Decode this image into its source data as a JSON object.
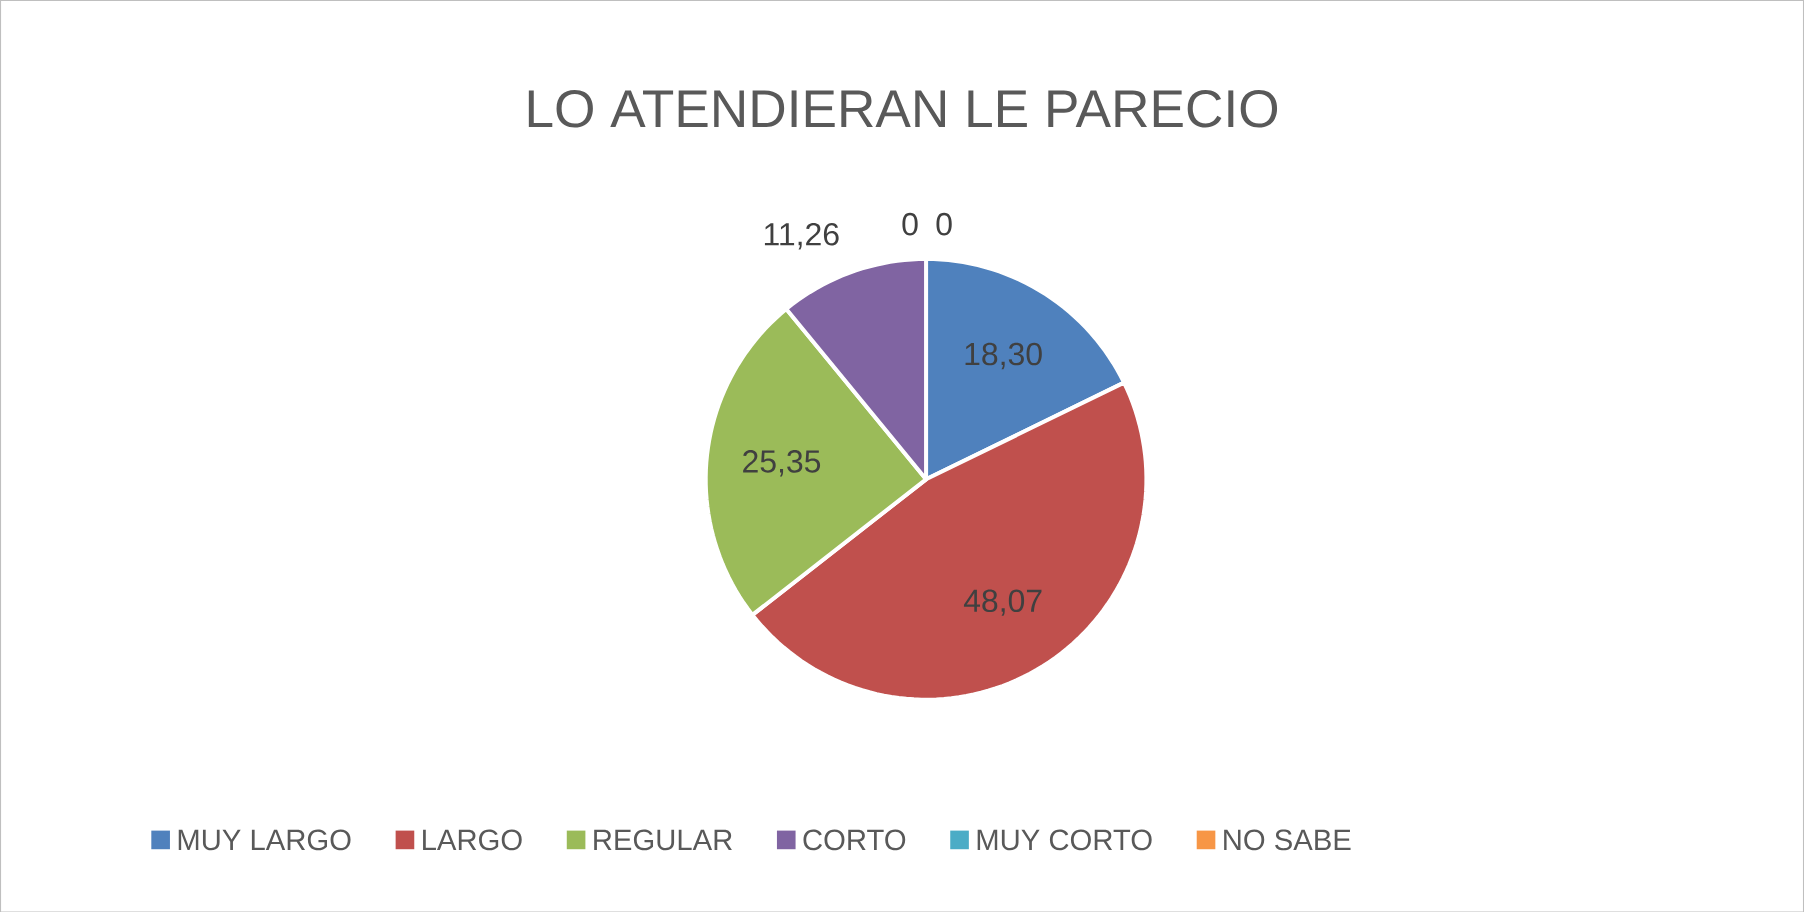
{
  "chart_data": {
    "type": "pie",
    "title": "LO ATENDIERAN LE PARECIO",
    "categories": [
      "MUY LARGO",
      "LARGO",
      "REGULAR",
      "CORTO",
      "MUY CORTO",
      "NO SABE"
    ],
    "values": [
      18.3,
      48.07,
      25.35,
      11.26,
      0,
      0
    ],
    "value_labels": [
      "18,30",
      "48,07",
      "25,35",
      "11,26",
      "0",
      "0"
    ],
    "colors": [
      "#4f81bd",
      "#c0504d",
      "#9bbb59",
      "#8064a2",
      "#4bacc6",
      "#f79646"
    ],
    "legend": "bottom"
  }
}
